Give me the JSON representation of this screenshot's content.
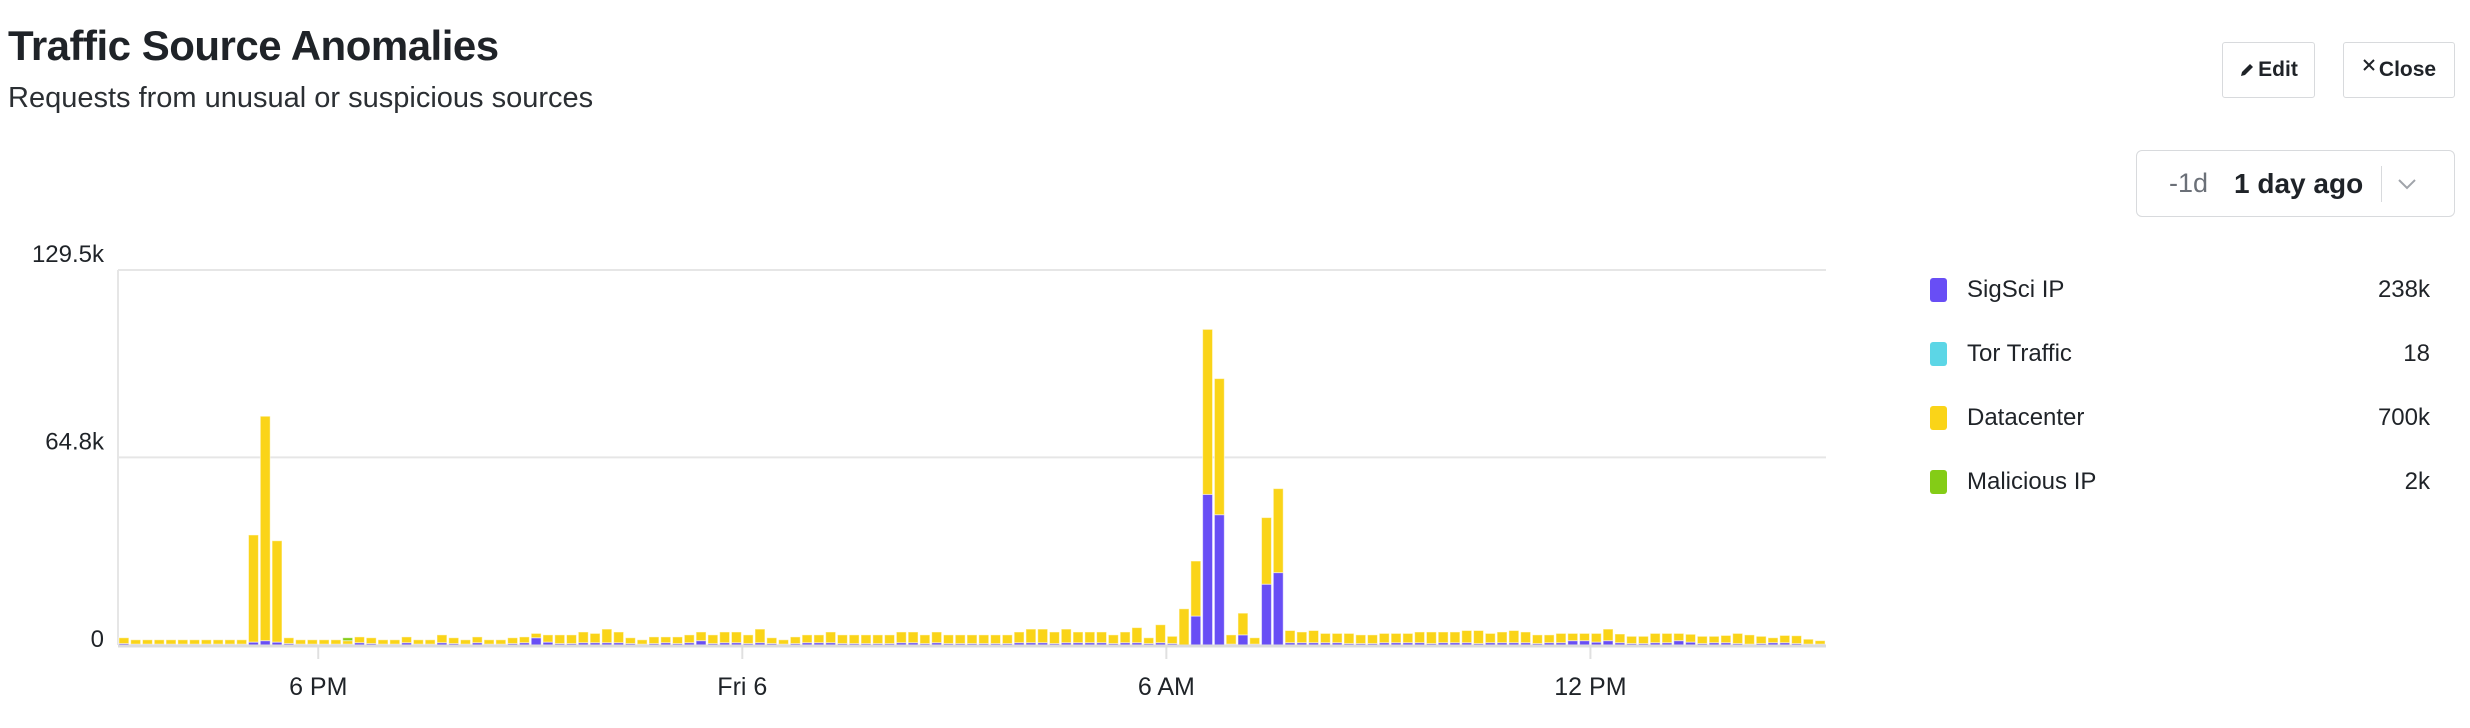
{
  "header": {
    "title": "Traffic Source Anomalies",
    "subtitle": "Requests from unusual or suspicious sources"
  },
  "toolbar": {
    "edit_label": "Edit",
    "close_label": "Close",
    "edit_icon": "pencil-icon",
    "close_icon": "close-icon"
  },
  "time_range": {
    "relative": "-1d",
    "label": "1 day ago",
    "icon": "chevron-down-icon"
  },
  "legend": [
    {
      "name": "SigSci IP",
      "value": "238k",
      "color": "#684ef5"
    },
    {
      "name": "Tor Traffic",
      "value": "18",
      "color": "#5cd6e6"
    },
    {
      "name": "Datacenter",
      "value": "700k",
      "color": "#fad418"
    },
    {
      "name": "Malicious IP",
      "value": "2k",
      "color": "#84cc16"
    }
  ],
  "chart_data": {
    "type": "bar",
    "stacked": true,
    "x_start": "15:10",
    "bin_minutes": 10,
    "ylim": [
      0,
      129.5
    ],
    "y_unit": "k",
    "y_ticks": [
      {
        "value": 0,
        "label": "0"
      },
      {
        "value": 64.8,
        "label": "64.8k"
      },
      {
        "value": 129.5,
        "label": "129.5k"
      }
    ],
    "x_ticks": [
      {
        "label": "6 PM",
        "time": "18:00"
      },
      {
        "label": "Fri 6",
        "time": "24:00"
      },
      {
        "label": "6 AM",
        "time": "30:00"
      },
      {
        "label": "12 PM",
        "time": "36:00"
      }
    ],
    "grid": true,
    "legend_position": "right",
    "series": [
      {
        "name": "SigSci IP",
        "color": "#684ef5",
        "values": [
          0.5,
          0.3,
          0.3,
          0.3,
          0.3,
          0.3,
          0.3,
          0.3,
          0.3,
          0.3,
          0.3,
          1,
          1.5,
          1,
          0.5,
          0.3,
          0.3,
          0.3,
          0.3,
          0.3,
          0.8,
          0.5,
          0.3,
          0.3,
          0.8,
          0.3,
          0.3,
          0.8,
          0.5,
          0.3,
          0.8,
          0.3,
          0.3,
          0.5,
          0.8,
          2.5,
          1,
          0.5,
          0.5,
          0.8,
          0.8,
          0.8,
          0.8,
          0.5,
          0.3,
          0.5,
          0.8,
          0.5,
          0.8,
          1.5,
          0.5,
          0.8,
          0.8,
          0.5,
          0.8,
          0.5,
          0.3,
          0.5,
          0.8,
          0.8,
          0.8,
          0.5,
          0.5,
          0.5,
          0.5,
          0.5,
          0.8,
          0.8,
          0.5,
          0.8,
          0.5,
          0.5,
          0.5,
          0.5,
          0.5,
          0.5,
          0.8,
          0.8,
          0.8,
          0.5,
          0.8,
          0.8,
          0.8,
          0.8,
          0.5,
          0.8,
          0.8,
          0.5,
          0.8,
          0.5,
          0,
          10,
          52,
          45,
          0.3,
          3.5,
          0.3,
          21,
          25,
          0.8,
          0.8,
          0.8,
          0.8,
          0.8,
          0.5,
          0.5,
          0.5,
          0.8,
          0.8,
          0.8,
          0.8,
          0.5,
          0.8,
          0.8,
          0.8,
          0.5,
          0.8,
          0.8,
          0.8,
          0.8,
          0.5,
          0.8,
          0.8,
          1.5,
          1.5,
          1,
          1.5,
          0.8,
          0.5,
          0.5,
          0.8,
          0.8,
          1.5,
          1,
          0.5,
          0.8,
          0.8,
          0.5,
          0.3,
          0.5,
          0.8,
          0.8,
          0.5,
          0.3,
          0.3
        ]
      },
      {
        "name": "Tor Traffic",
        "color": "#5cd6e6",
        "values": [
          0,
          0,
          0,
          0,
          0,
          0,
          0,
          0,
          0,
          0,
          0,
          0,
          0,
          0,
          0,
          0,
          0,
          0,
          0,
          0,
          0,
          0,
          0,
          0,
          0,
          0,
          0,
          0,
          0,
          0,
          0,
          0,
          0,
          0,
          0,
          0,
          0,
          0,
          0,
          0,
          0,
          0,
          0,
          0,
          0,
          0,
          0,
          0,
          0,
          0,
          0,
          0,
          0,
          0,
          0,
          0,
          0,
          0,
          0,
          0,
          0,
          0,
          0,
          0,
          0,
          0,
          0,
          0,
          0,
          0,
          0,
          0,
          0,
          0,
          0,
          0,
          0,
          0,
          0,
          0,
          0,
          0,
          0,
          0,
          0,
          0,
          0,
          0,
          0,
          0,
          0,
          0,
          0,
          0,
          0,
          0,
          0,
          0,
          0,
          0,
          0,
          0,
          0,
          0,
          0,
          0,
          0,
          0,
          0,
          0,
          0,
          0,
          0,
          0,
          0,
          0,
          0,
          0,
          0,
          0,
          0,
          0,
          0,
          0,
          0,
          0,
          0,
          0,
          0,
          0,
          0,
          0,
          0,
          0,
          0,
          0,
          0,
          0,
          0,
          0,
          0,
          0,
          0,
          0,
          0
        ]
      },
      {
        "name": "Datacenter",
        "color": "#fad418",
        "values": [
          2,
          1.5,
          1.5,
          1.5,
          1.5,
          1.5,
          1.5,
          1.5,
          1.5,
          1.5,
          1.5,
          37,
          77.5,
          35,
          2,
          1.5,
          1.5,
          1.5,
          1.5,
          1.2,
          2,
          2,
          1.5,
          1.5,
          2,
          1.5,
          1.5,
          2.7,
          2,
          1.5,
          2,
          1.5,
          1.5,
          2,
          2,
          1.5,
          2.5,
          3,
          3,
          3.7,
          3.2,
          4.7,
          3.7,
          2,
          1.5,
          2.3,
          2,
          2.3,
          2.7,
          3,
          3,
          3.7,
          3.7,
          3,
          4.7,
          2,
          1.5,
          2.3,
          2.7,
          2.7,
          3.7,
          3,
          3,
          3,
          3,
          3,
          3.7,
          3.7,
          3,
          3.7,
          3,
          3,
          3,
          3,
          3,
          3,
          3.7,
          4.7,
          4.7,
          4,
          4.7,
          3.7,
          3.7,
          3.7,
          3,
          3.7,
          5.2,
          2,
          6.2,
          2.5,
          12.5,
          19,
          57,
          47,
          3.2,
          7.5,
          2.2,
          23,
          29,
          4.2,
          3.7,
          4.2,
          3.2,
          3.2,
          3.5,
          3,
          3,
          3.2,
          3.2,
          3.2,
          3.7,
          4,
          3.7,
          3.7,
          4.2,
          4.5,
          3.2,
          3.7,
          4.2,
          3.7,
          3,
          2.7,
          3.2,
          2.5,
          2.5,
          3,
          4,
          3,
          2.5,
          2.5,
          3.2,
          3.2,
          2.5,
          2.7,
          2.5,
          2.2,
          2.5,
          3.5,
          3.2,
          2.5,
          1.7,
          2.5,
          2.7,
          1.7,
          1.2,
          2.2
        ]
      },
      {
        "name": "Malicious IP",
        "color": "#84cc16",
        "values": [
          0,
          0,
          0,
          0,
          0,
          0,
          0,
          0,
          0,
          0,
          0,
          0,
          0,
          0,
          0,
          0,
          0,
          0,
          0,
          1,
          0,
          0,
          0,
          0,
          0,
          0,
          0,
          0,
          0,
          0,
          0,
          0,
          0,
          0,
          0,
          0,
          0,
          0,
          0,
          0,
          0,
          0,
          0,
          0,
          0,
          0,
          0,
          0,
          0,
          0,
          0,
          0,
          0,
          0,
          0,
          0,
          0,
          0,
          0,
          0,
          0,
          0,
          0,
          0,
          0,
          0,
          0,
          0,
          0,
          0,
          0,
          0,
          0,
          0,
          0,
          0,
          0,
          0,
          0,
          0,
          0,
          0,
          0,
          0,
          0,
          0,
          0,
          0,
          0,
          0,
          0,
          0,
          0,
          0,
          0,
          0,
          0,
          0,
          0,
          0,
          0,
          0,
          0,
          0,
          0,
          0,
          0,
          0,
          0,
          0,
          0,
          0,
          0,
          0,
          0,
          0,
          0,
          0,
          0,
          0,
          0,
          0,
          0,
          0,
          0,
          0,
          0,
          0,
          0,
          0,
          0,
          0,
          0,
          0,
          0,
          0,
          0,
          0,
          0,
          0,
          0,
          0,
          0,
          0,
          0
        ]
      }
    ]
  }
}
